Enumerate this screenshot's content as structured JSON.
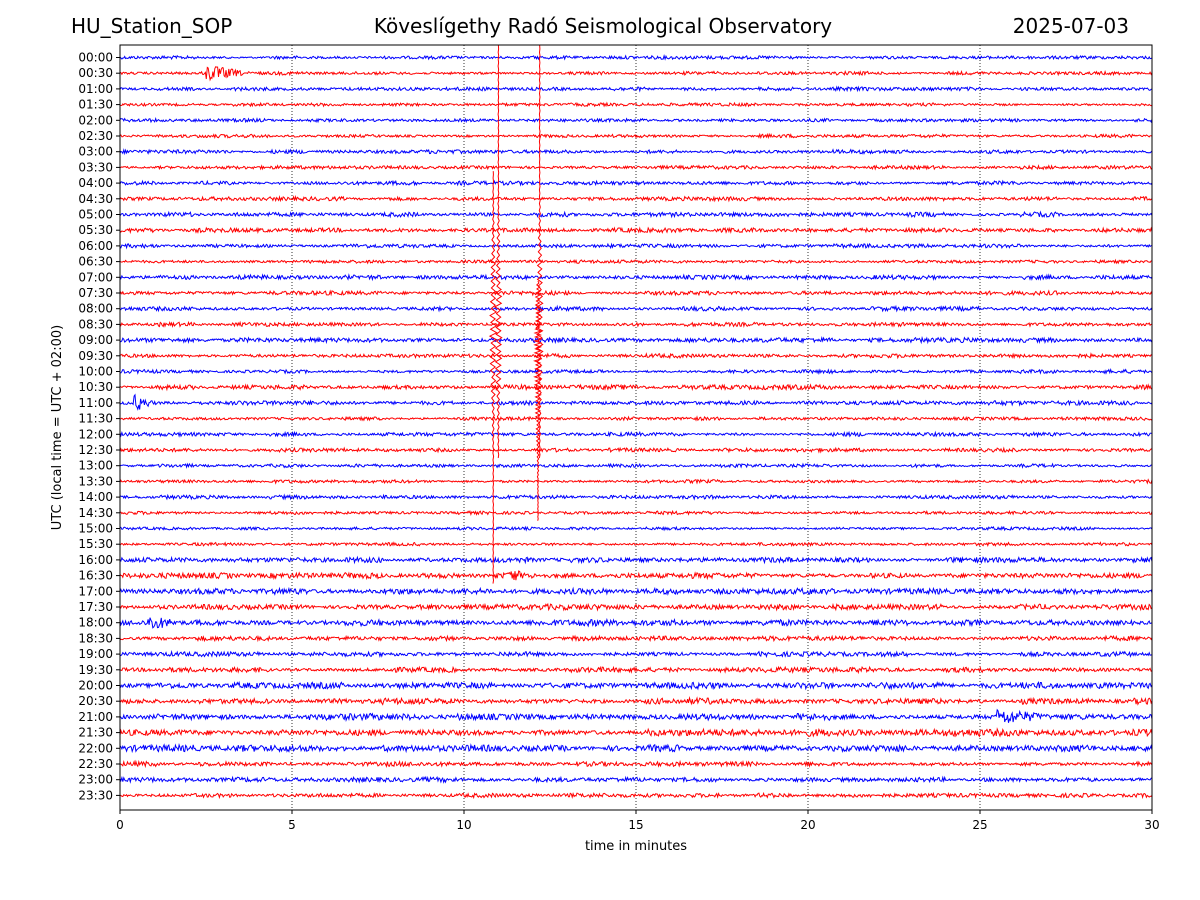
{
  "header": {
    "station": "HU_Station_SOP",
    "title": "Köveslígethy Radó Seismological Observatory",
    "date": "2025-07-03"
  },
  "chart_data": {
    "type": "line",
    "title": "Köveslígethy Radó Seismological Observatory",
    "xlabel": "time in minutes",
    "ylabel": "UTC (local time = UTC + 02:00)",
    "xlim": [
      0,
      30
    ],
    "xticks": [
      0,
      5,
      10,
      15,
      20,
      25,
      30
    ],
    "xtick_labels": [
      "0",
      "5",
      "10",
      "15",
      "20",
      "25",
      "30"
    ],
    "rows": [
      "00:00",
      "00:30",
      "01:00",
      "01:30",
      "02:00",
      "02:30",
      "03:00",
      "03:30",
      "04:00",
      "04:30",
      "05:00",
      "05:30",
      "06:00",
      "06:30",
      "07:00",
      "07:30",
      "08:00",
      "08:30",
      "09:00",
      "09:30",
      "10:00",
      "10:30",
      "11:00",
      "11:30",
      "12:00",
      "12:30",
      "13:00",
      "13:30",
      "14:00",
      "14:30",
      "15:00",
      "15:30",
      "16:00",
      "16:30",
      "17:00",
      "17:30",
      "18:00",
      "18:30",
      "19:00",
      "19:30",
      "20:00",
      "20:30",
      "21:00",
      "21:30",
      "22:00",
      "22:30",
      "23:00",
      "23:30"
    ],
    "colors": [
      "#0000ff",
      "#ff0000"
    ],
    "vertical_gridlines": [
      5,
      10,
      15,
      20,
      25
    ],
    "grid_style": "dotted",
    "noise_amplitude": [
      0.22,
      0.22,
      0.24,
      0.2,
      0.22,
      0.22,
      0.25,
      0.22,
      0.25,
      0.25,
      0.3,
      0.28,
      0.25,
      0.22,
      0.28,
      0.28,
      0.28,
      0.26,
      0.3,
      0.26,
      0.25,
      0.3,
      0.28,
      0.22,
      0.25,
      0.24,
      0.22,
      0.22,
      0.24,
      0.22,
      0.2,
      0.22,
      0.34,
      0.38,
      0.4,
      0.36,
      0.42,
      0.3,
      0.3,
      0.34,
      0.42,
      0.4,
      0.44,
      0.46,
      0.44,
      0.3,
      0.3,
      0.28
    ],
    "events": [
      {
        "row": "00:30",
        "t": 2.5,
        "duration": 1.2,
        "amplitude": 0.9
      },
      {
        "row": "11:00",
        "t": 0.4,
        "duration": 0.6,
        "amplitude": 0.9
      },
      {
        "row": "16:30",
        "t": 11.3,
        "duration": 0.4,
        "amplitude": 0.8
      },
      {
        "row": "18:00",
        "t": 0.8,
        "duration": 1.0,
        "amplitude": 0.7
      },
      {
        "row": "21:00",
        "t": 25.5,
        "duration": 1.5,
        "amplitude": 0.8
      }
    ],
    "spikes": [
      {
        "t": 11.0,
        "from_row": "00:00",
        "to_row": "12:30",
        "peak_row": "08:30"
      },
      {
        "t": 10.85,
        "from_row": "04:00",
        "to_row": "16:30",
        "peak_row": "08:30"
      },
      {
        "t": 12.2,
        "from_row": "00:00",
        "to_row": "12:30",
        "peak_row": "08:30"
      },
      {
        "t": 12.15,
        "from_row": "07:30",
        "to_row": "14:30",
        "peak_row": "09:30"
      }
    ]
  }
}
